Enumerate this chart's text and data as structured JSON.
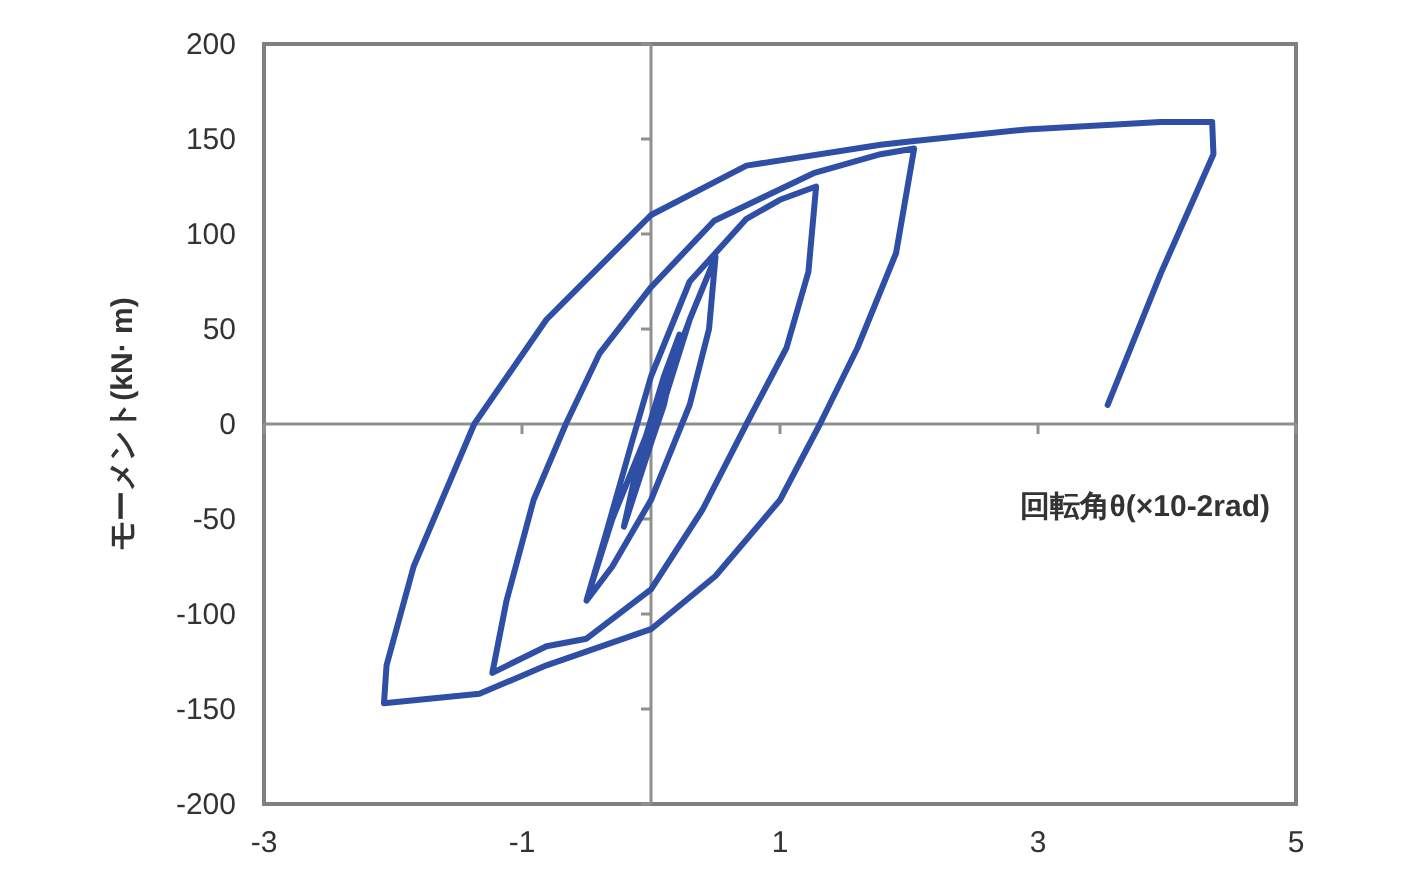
{
  "chart_data": {
    "type": "line",
    "xlabel": "回転角θ(×10-2rad)",
    "ylabel": "モーメント(kN· m)",
    "xlim": [
      -3,
      5
    ],
    "ylim": [
      -200,
      200
    ],
    "xticks": [
      -3,
      -1,
      1,
      3,
      5
    ],
    "yticks": [
      -200,
      -150,
      -100,
      -50,
      0,
      50,
      100,
      150,
      200
    ],
    "series": [
      {
        "color": "#2f4ea5",
        "x": [
          0,
          0.1,
          0.22,
          0.1,
          -0.1,
          -0.21,
          -0.1,
          0.1,
          0.22,
          0.05,
          -0.1,
          -0.21,
          0.0,
          0.3,
          0.5,
          0.45,
          0.3,
          0.0,
          -0.3,
          -0.5,
          -0.3,
          0.0,
          0.3,
          0.5,
          0.45,
          0.3,
          0.0,
          -0.3,
          -0.5,
          -0.35,
          -0.15,
          0.0,
          0.3,
          0.74,
          1.0,
          1.28,
          1.22,
          1.05,
          0.74,
          0.4,
          0.0,
          -0.5,
          -0.81,
          -1.23,
          -1.12,
          -0.91,
          -0.66,
          -0.4,
          0.0,
          0.49,
          1.26,
          1.78,
          2.04,
          1.9,
          1.6,
          1.31,
          1.0,
          0.5,
          0.0,
          -0.81,
          -1.33,
          -2.07,
          -2.05,
          -1.84,
          -1.37,
          -0.81,
          0.0,
          0.74,
          1.78,
          2.04,
          2.91,
          3.95,
          4.35,
          4.36,
          3.95,
          3.54
        ],
        "values": [
          0,
          20,
          47,
          10,
          -30,
          -54,
          -20,
          25,
          47,
          5,
          -28,
          -54,
          -10,
          55,
          88,
          50,
          10,
          -40,
          -75,
          -93,
          -50,
          0,
          55,
          88,
          50,
          10,
          -40,
          -75,
          -93,
          -58,
          -10,
          25,
          75,
          108,
          118,
          125,
          80,
          40,
          0,
          -45,
          -87,
          -113,
          -117,
          -131,
          -93,
          -40,
          0,
          37,
          72,
          107,
          132,
          142,
          145,
          90,
          40,
          0,
          -40,
          -80,
          -108,
          -127,
          -142,
          -147,
          -127,
          -75,
          0,
          55,
          110,
          136,
          147,
          149,
          155,
          159,
          159,
          142,
          79,
          10
        ]
      }
    ]
  }
}
